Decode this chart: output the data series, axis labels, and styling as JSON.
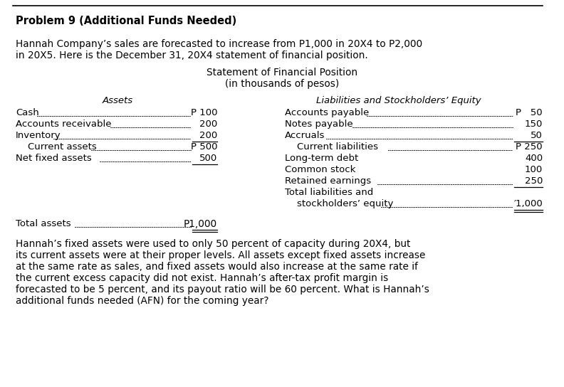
{
  "bg_color": "#ffffff",
  "title": "Problem 9 (Additional Funds Needed)",
  "intro1": "Hannah Company’s sales are forecasted to increase from P1,000 in 20X4 to P2,000",
  "intro2": "in 20X5. Here is the December 31, 20X4 statement of financial position.",
  "stmt_t1": "Statement of Financial Position",
  "stmt_t2": "(in thousands of pesos)",
  "hdr_assets": "Assets",
  "hdr_liab": "Liabilities and Stockholders’ Equity",
  "asset_labels": [
    "Cash",
    "Accounts receivable",
    "Inventory",
    "    Current assets",
    "Net fixed assets"
  ],
  "asset_vals": [
    "P 100",
    "200",
    "200",
    "P 500",
    "500"
  ],
  "asset_ul": [
    false,
    false,
    true,
    false,
    true
  ],
  "liab_labels": [
    "Accounts payable",
    "Notes payable",
    "Accruals",
    "    Current liabilities",
    "Long-term debt ",
    "Common stock ",
    "Retained earnings",
    "Total liabilities and",
    "    stockholders’ equity"
  ],
  "liab_vals": [
    "P   50",
    "150",
    "50",
    "P 250",
    "400",
    "100",
    "250",
    "",
    "′1,000"
  ],
  "liab_ul": [
    false,
    false,
    true,
    false,
    false,
    false,
    true,
    false,
    true
  ],
  "total_lbl": "Total assets",
  "total_val": "P1,000",
  "footer": [
    "Hannah’s fixed assets were used to only 50 percent of capacity during 20X4, but",
    "its current assets were at their proper levels. All assets except fixed assets increase",
    "at the same rate as sales, and fixed assets would also increase at the same rate if",
    "the current excess capacity did not exist. Hannah’s after-tax profit margin is",
    "forecasted to be 5 percent, and its payout ratio will be 60 percent. What is Hannah’s",
    "additional funds needed (AFN) for the coming year?"
  ]
}
